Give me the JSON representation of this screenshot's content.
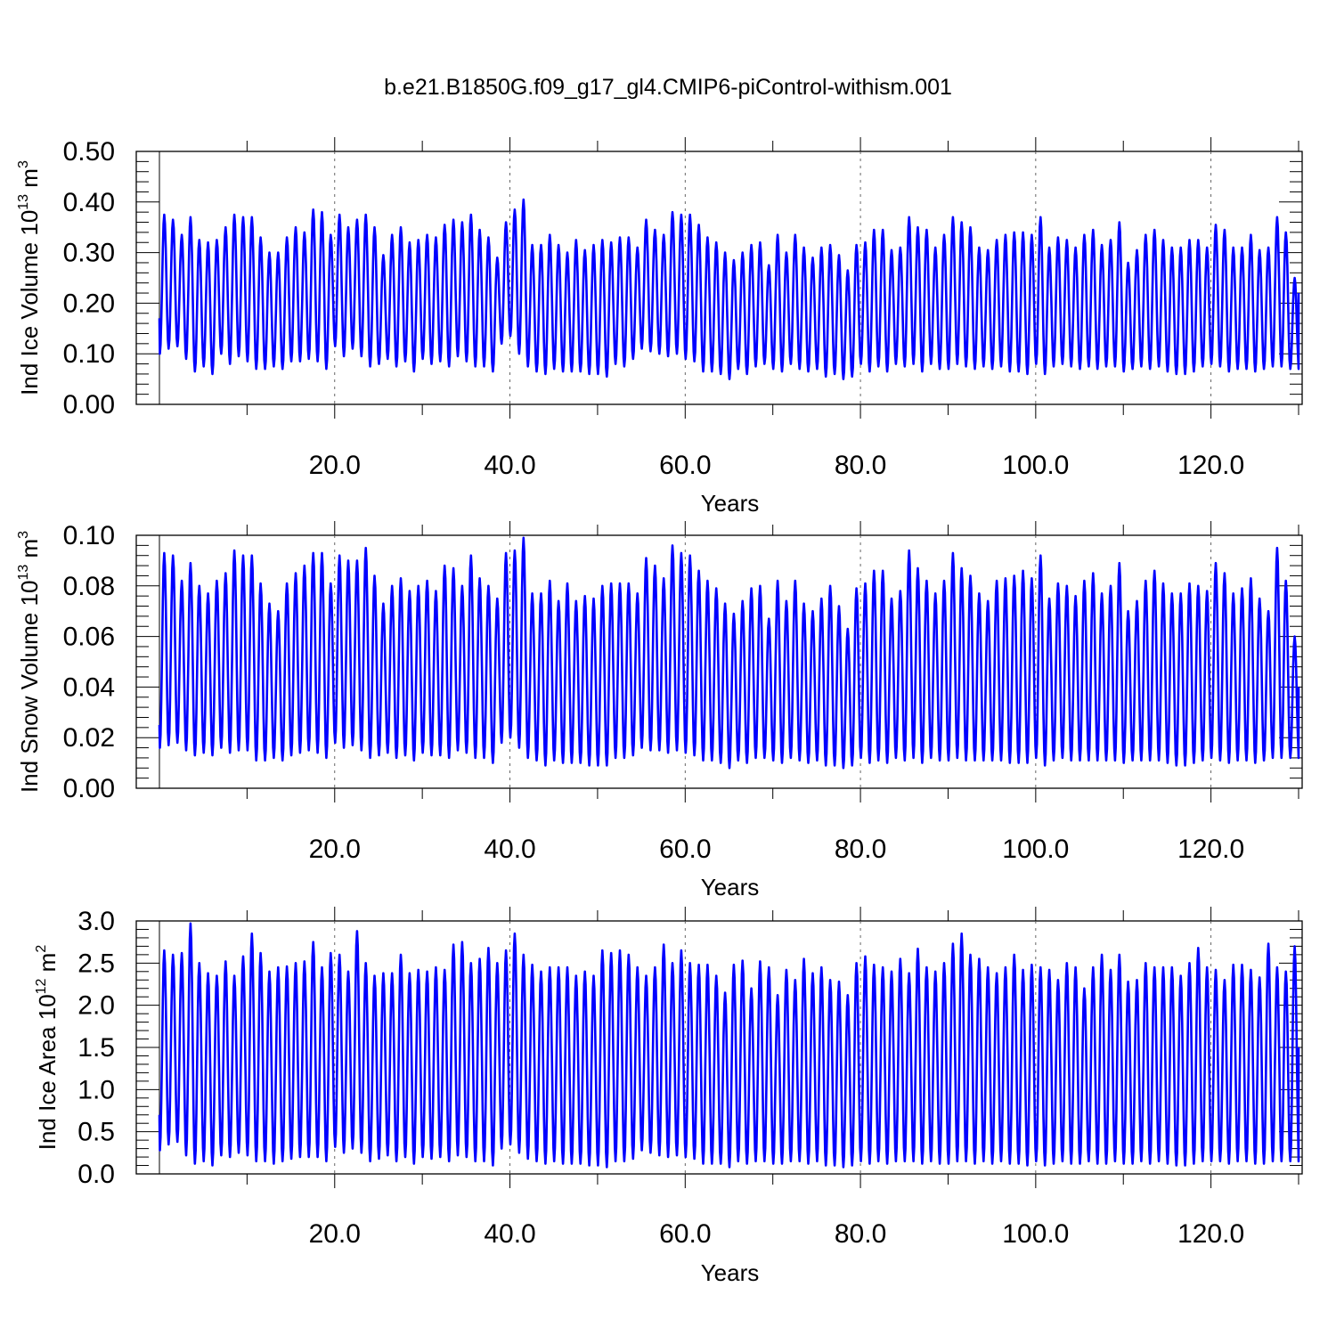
{
  "figure_title": "b.e21.B1850G.f09_g17_gl4.CMIP6-piControl-withism.001",
  "line_color": "#0000ff",
  "chart_data": [
    {
      "type": "line",
      "title": "",
      "xlabel": "Years",
      "ylabel": {
        "base": "Ind Ice Volume 10",
        "exp": "13",
        "unit": " m",
        "unit_exp": "3"
      },
      "xlim": [
        0,
        130
      ],
      "ylim": [
        0,
        0.5
      ],
      "xticks": [
        20,
        40,
        60,
        80,
        100,
        120
      ],
      "xtick_labels": [
        "20.0",
        "40.0",
        "60.0",
        "80.0",
        "100.0",
        "120.0"
      ],
      "yticks": [
        0,
        0.1,
        0.2,
        0.3,
        0.4,
        0.5
      ],
      "ytick_labels": [
        "0.00",
        "0.10",
        "0.20",
        "0.30",
        "0.40",
        "0.50"
      ],
      "grid": "vertical dashed at major x ticks",
      "series": [
        {
          "frequency": "monthly, one seasonal cycle per year",
          "start_value": 0.17,
          "end_value": 0.22,
          "annual_max": [
            0.375,
            0.365,
            0.335,
            0.37,
            0.325,
            0.32,
            0.325,
            0.35,
            0.375,
            0.37,
            0.37,
            0.33,
            0.3,
            0.3,
            0.33,
            0.35,
            0.34,
            0.385,
            0.38,
            0.335,
            0.375,
            0.35,
            0.365,
            0.375,
            0.35,
            0.295,
            0.335,
            0.35,
            0.32,
            0.325,
            0.335,
            0.33,
            0.355,
            0.365,
            0.36,
            0.375,
            0.345,
            0.33,
            0.29,
            0.36,
            0.385,
            0.405,
            0.315,
            0.315,
            0.335,
            0.315,
            0.3,
            0.325,
            0.305,
            0.315,
            0.325,
            0.32,
            0.33,
            0.33,
            0.31,
            0.365,
            0.345,
            0.335,
            0.38,
            0.375,
            0.375,
            0.355,
            0.33,
            0.32,
            0.3,
            0.285,
            0.3,
            0.315,
            0.32,
            0.275,
            0.335,
            0.3,
            0.335,
            0.31,
            0.29,
            0.31,
            0.315,
            0.295,
            0.265,
            0.315,
            0.32,
            0.345,
            0.345,
            0.305,
            0.31,
            0.37,
            0.35,
            0.345,
            0.31,
            0.335,
            0.37,
            0.36,
            0.35,
            0.31,
            0.305,
            0.325,
            0.335,
            0.34,
            0.34,
            0.335,
            0.37,
            0.31,
            0.33,
            0.325,
            0.31,
            0.335,
            0.345,
            0.315,
            0.325,
            0.36,
            0.28,
            0.305,
            0.335,
            0.345,
            0.325,
            0.31,
            0.31,
            0.325,
            0.325,
            0.31,
            0.355,
            0.345,
            0.31,
            0.31,
            0.335,
            0.305,
            0.31,
            0.37,
            0.34,
            0.25
          ],
          "annual_min": [
            0.1,
            0.11,
            0.115,
            0.09,
            0.065,
            0.075,
            0.06,
            0.1,
            0.08,
            0.095,
            0.085,
            0.07,
            0.07,
            0.075,
            0.07,
            0.085,
            0.085,
            0.09,
            0.085,
            0.07,
            0.115,
            0.095,
            0.11,
            0.095,
            0.075,
            0.08,
            0.09,
            0.075,
            0.085,
            0.065,
            0.09,
            0.08,
            0.085,
            0.075,
            0.095,
            0.085,
            0.075,
            0.075,
            0.065,
            0.12,
            0.135,
            0.1,
            0.075,
            0.065,
            0.06,
            0.07,
            0.065,
            0.065,
            0.065,
            0.06,
            0.06,
            0.055,
            0.08,
            0.075,
            0.09,
            0.11,
            0.105,
            0.1,
            0.095,
            0.1,
            0.09,
            0.085,
            0.065,
            0.065,
            0.06,
            0.05,
            0.07,
            0.06,
            0.075,
            0.08,
            0.07,
            0.065,
            0.08,
            0.07,
            0.065,
            0.07,
            0.055,
            0.06,
            0.05,
            0.055,
            0.08,
            0.065,
            0.075,
            0.065,
            0.08,
            0.075,
            0.08,
            0.065,
            0.08,
            0.07,
            0.07,
            0.08,
            0.075,
            0.07,
            0.075,
            0.07,
            0.075,
            0.065,
            0.065,
            0.06,
            0.08,
            0.06,
            0.075,
            0.08,
            0.075,
            0.07,
            0.075,
            0.07,
            0.075,
            0.075,
            0.065,
            0.07,
            0.075,
            0.07,
            0.075,
            0.065,
            0.06,
            0.06,
            0.065,
            0.075,
            0.08,
            0.075,
            0.065,
            0.07,
            0.07,
            0.065,
            0.07,
            0.075,
            0.075,
            0.07
          ]
        }
      ]
    },
    {
      "type": "line",
      "title": "",
      "xlabel": "Years",
      "ylabel": {
        "base": "Ind Snow Volume 10",
        "exp": "13",
        "unit": " m",
        "unit_exp": "3"
      },
      "xlim": [
        0,
        130
      ],
      "ylim": [
        0,
        0.1
      ],
      "xticks": [
        20,
        40,
        60,
        80,
        100,
        120
      ],
      "xtick_labels": [
        "20.0",
        "40.0",
        "60.0",
        "80.0",
        "100.0",
        "120.0"
      ],
      "yticks": [
        0,
        0.02,
        0.04,
        0.06,
        0.08,
        0.1
      ],
      "ytick_labels": [
        "0.00",
        "0.02",
        "0.04",
        "0.06",
        "0.08",
        "0.10"
      ],
      "grid": "vertical dashed at major x ticks",
      "series": [
        {
          "frequency": "monthly, one seasonal cycle per year",
          "start_value": 0.025,
          "end_value": 0.04,
          "annual_max": [
            0.093,
            0.092,
            0.082,
            0.089,
            0.08,
            0.077,
            0.082,
            0.085,
            0.094,
            0.092,
            0.092,
            0.081,
            0.073,
            0.07,
            0.081,
            0.085,
            0.088,
            0.093,
            0.093,
            0.081,
            0.092,
            0.09,
            0.09,
            0.095,
            0.084,
            0.073,
            0.08,
            0.083,
            0.078,
            0.08,
            0.082,
            0.078,
            0.088,
            0.087,
            0.08,
            0.092,
            0.083,
            0.08,
            0.075,
            0.093,
            0.094,
            0.099,
            0.077,
            0.077,
            0.082,
            0.074,
            0.081,
            0.074,
            0.076,
            0.075,
            0.08,
            0.081,
            0.081,
            0.081,
            0.077,
            0.091,
            0.088,
            0.083,
            0.096,
            0.093,
            0.092,
            0.086,
            0.082,
            0.079,
            0.073,
            0.069,
            0.074,
            0.079,
            0.08,
            0.067,
            0.082,
            0.074,
            0.082,
            0.073,
            0.07,
            0.075,
            0.08,
            0.072,
            0.063,
            0.079,
            0.081,
            0.086,
            0.086,
            0.075,
            0.078,
            0.094,
            0.087,
            0.082,
            0.077,
            0.082,
            0.093,
            0.087,
            0.084,
            0.077,
            0.074,
            0.082,
            0.083,
            0.084,
            0.086,
            0.083,
            0.092,
            0.075,
            0.081,
            0.08,
            0.076,
            0.082,
            0.085,
            0.077,
            0.08,
            0.089,
            0.07,
            0.074,
            0.082,
            0.086,
            0.081,
            0.077,
            0.077,
            0.081,
            0.08,
            0.078,
            0.089,
            0.085,
            0.077,
            0.079,
            0.083,
            0.075,
            0.07,
            0.095,
            0.082,
            0.06
          ],
          "annual_min": [
            0.016,
            0.017,
            0.018,
            0.015,
            0.013,
            0.014,
            0.013,
            0.016,
            0.014,
            0.015,
            0.015,
            0.011,
            0.011,
            0.012,
            0.011,
            0.013,
            0.014,
            0.015,
            0.014,
            0.012,
            0.018,
            0.016,
            0.017,
            0.015,
            0.012,
            0.013,
            0.014,
            0.012,
            0.013,
            0.011,
            0.014,
            0.013,
            0.013,
            0.012,
            0.015,
            0.014,
            0.012,
            0.012,
            0.01,
            0.018,
            0.02,
            0.016,
            0.012,
            0.011,
            0.009,
            0.011,
            0.01,
            0.01,
            0.01,
            0.009,
            0.009,
            0.009,
            0.012,
            0.012,
            0.013,
            0.016,
            0.015,
            0.015,
            0.014,
            0.015,
            0.014,
            0.013,
            0.011,
            0.011,
            0.01,
            0.008,
            0.011,
            0.01,
            0.012,
            0.012,
            0.011,
            0.01,
            0.012,
            0.011,
            0.01,
            0.011,
            0.009,
            0.009,
            0.008,
            0.009,
            0.012,
            0.01,
            0.011,
            0.01,
            0.012,
            0.011,
            0.012,
            0.01,
            0.012,
            0.011,
            0.011,
            0.012,
            0.011,
            0.011,
            0.011,
            0.011,
            0.011,
            0.01,
            0.01,
            0.01,
            0.012,
            0.009,
            0.011,
            0.012,
            0.011,
            0.011,
            0.011,
            0.011,
            0.011,
            0.011,
            0.01,
            0.011,
            0.011,
            0.011,
            0.011,
            0.01,
            0.009,
            0.009,
            0.01,
            0.011,
            0.012,
            0.011,
            0.01,
            0.011,
            0.011,
            0.01,
            0.011,
            0.012,
            0.012,
            0.012
          ]
        }
      ]
    },
    {
      "type": "line",
      "title": "",
      "xlabel": "Years",
      "ylabel": {
        "base": "Ind Ice Area 10",
        "exp": "12",
        "unit": " m",
        "unit_exp": "2"
      },
      "xlim": [
        0,
        130
      ],
      "ylim": [
        0,
        3.0
      ],
      "xticks": [
        20,
        40,
        60,
        80,
        100,
        120
      ],
      "xtick_labels": [
        "20.0",
        "40.0",
        "60.0",
        "80.0",
        "100.0",
        "120.0"
      ],
      "yticks": [
        0,
        0.5,
        1.0,
        1.5,
        2.0,
        2.5,
        3.0
      ],
      "ytick_labels": [
        "0.0",
        "0.5",
        "1.0",
        "1.5",
        "2.0",
        "2.5",
        "3.0"
      ],
      "grid": "vertical dashed at major x ticks",
      "series": [
        {
          "frequency": "monthly, one seasonal cycle per year",
          "start_value": 0.7,
          "end_value": 1.5,
          "annual_max": [
            2.65,
            2.6,
            2.62,
            2.97,
            2.5,
            2.38,
            2.35,
            2.52,
            2.35,
            2.58,
            2.85,
            2.62,
            2.4,
            2.45,
            2.46,
            2.5,
            2.52,
            2.75,
            2.45,
            2.62,
            2.6,
            2.4,
            2.88,
            2.5,
            2.35,
            2.38,
            2.38,
            2.6,
            2.38,
            2.42,
            2.4,
            2.45,
            2.42,
            2.72,
            2.75,
            2.5,
            2.55,
            2.68,
            2.5,
            2.65,
            2.85,
            2.6,
            2.48,
            2.4,
            2.45,
            2.45,
            2.45,
            2.35,
            2.4,
            2.35,
            2.65,
            2.62,
            2.65,
            2.6,
            2.45,
            2.35,
            2.45,
            2.72,
            2.5,
            2.65,
            2.5,
            2.48,
            2.48,
            2.35,
            2.15,
            2.48,
            2.53,
            2.2,
            2.52,
            2.45,
            2.12,
            2.42,
            2.3,
            2.55,
            2.38,
            2.45,
            2.3,
            2.28,
            2.12,
            2.5,
            2.58,
            2.48,
            2.45,
            2.4,
            2.55,
            2.38,
            2.67,
            2.45,
            2.4,
            2.5,
            2.73,
            2.85,
            2.6,
            2.55,
            2.45,
            2.38,
            2.45,
            2.6,
            2.42,
            2.48,
            2.45,
            2.42,
            2.3,
            2.5,
            2.45,
            2.2,
            2.45,
            2.6,
            2.42,
            2.6,
            2.28,
            2.3,
            2.5,
            2.45,
            2.45,
            2.45,
            2.35,
            2.5,
            2.68,
            2.45,
            2.42,
            2.3,
            2.48,
            2.48,
            2.42,
            2.33,
            2.73,
            2.45,
            2.4,
            2.7
          ],
          "annual_min": [
            0.28,
            0.35,
            0.38,
            0.22,
            0.12,
            0.15,
            0.1,
            0.22,
            0.2,
            0.25,
            0.22,
            0.15,
            0.15,
            0.12,
            0.15,
            0.18,
            0.2,
            0.2,
            0.2,
            0.15,
            0.32,
            0.25,
            0.3,
            0.25,
            0.15,
            0.18,
            0.22,
            0.15,
            0.2,
            0.12,
            0.2,
            0.18,
            0.2,
            0.15,
            0.22,
            0.2,
            0.15,
            0.15,
            0.1,
            0.3,
            0.35,
            0.25,
            0.18,
            0.15,
            0.12,
            0.15,
            0.12,
            0.12,
            0.12,
            0.1,
            0.1,
            0.08,
            0.15,
            0.15,
            0.18,
            0.28,
            0.25,
            0.22,
            0.2,
            0.22,
            0.2,
            0.18,
            0.12,
            0.12,
            0.12,
            0.08,
            0.15,
            0.12,
            0.15,
            0.15,
            0.12,
            0.12,
            0.15,
            0.15,
            0.12,
            0.15,
            0.1,
            0.1,
            0.08,
            0.1,
            0.15,
            0.12,
            0.15,
            0.12,
            0.15,
            0.15,
            0.15,
            0.12,
            0.15,
            0.12,
            0.12,
            0.15,
            0.15,
            0.12,
            0.15,
            0.12,
            0.15,
            0.12,
            0.12,
            0.1,
            0.15,
            0.1,
            0.12,
            0.15,
            0.12,
            0.12,
            0.15,
            0.12,
            0.12,
            0.15,
            0.12,
            0.12,
            0.15,
            0.12,
            0.15,
            0.12,
            0.1,
            0.1,
            0.12,
            0.15,
            0.15,
            0.15,
            0.12,
            0.15,
            0.15,
            0.12,
            0.12,
            0.15,
            0.15,
            0.15
          ]
        }
      ]
    }
  ]
}
